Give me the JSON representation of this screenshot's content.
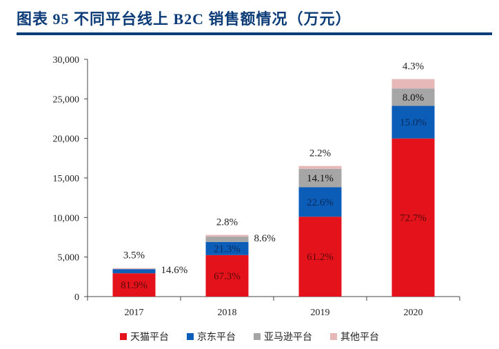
{
  "title": "图表 95   不同平台线上 B2C 销售额情况（万元）",
  "chart_data": {
    "type": "bar",
    "stacked": true,
    "title": "不同平台线上 B2C 销售额情况（万元）",
    "categories": [
      "2017",
      "2018",
      "2019",
      "2020"
    ],
    "ylim": [
      0,
      30000
    ],
    "yticks": [
      "0",
      "5,000",
      "10,000",
      "15,000",
      "20,000",
      "25,000",
      "30,000"
    ],
    "ytick_values": [
      0,
      5000,
      10000,
      15000,
      20000,
      25000,
      30000
    ],
    "grid": false,
    "legend_position": "bottom",
    "series": [
      {
        "name": "天猫平台",
        "color": "#e3121b",
        "values": [
          2948,
          5249,
          10098,
          19993
        ],
        "labels": [
          "81.9%",
          "67.3%",
          "61.2%",
          "72.7%"
        ],
        "label_color": "#5a0a0a",
        "label_pos": [
          "inside",
          "inside",
          "inside",
          "inside"
        ]
      },
      {
        "name": "京东平台",
        "color": "#0b5db8",
        "values": [
          526,
          1661,
          3729,
          4125
        ],
        "labels": [
          "14.6%",
          "21.3%",
          "22.6%",
          "15.0%"
        ],
        "label_color": "#0a2a5a",
        "label_pos": [
          "right",
          "inside",
          "inside",
          "inside"
        ]
      },
      {
        "name": "亚马逊平台",
        "color": "#a6a6a6",
        "values": [
          0,
          671,
          2327,
          2200
        ],
        "labels": [
          "",
          "8.6%",
          "14.1%",
          "8.0%"
        ],
        "label_color": "#111111",
        "label_pos": [
          "none",
          "right",
          "inside",
          "inside"
        ]
      },
      {
        "name": "其他平台",
        "color": "#e6b9b8",
        "values": [
          126,
          218,
          363,
          1183
        ],
        "labels": [
          "3.5%",
          "2.8%",
          "2.2%",
          "4.3%"
        ],
        "label_color": "#222222",
        "label_pos": [
          "above",
          "above",
          "above",
          "above"
        ]
      }
    ]
  }
}
